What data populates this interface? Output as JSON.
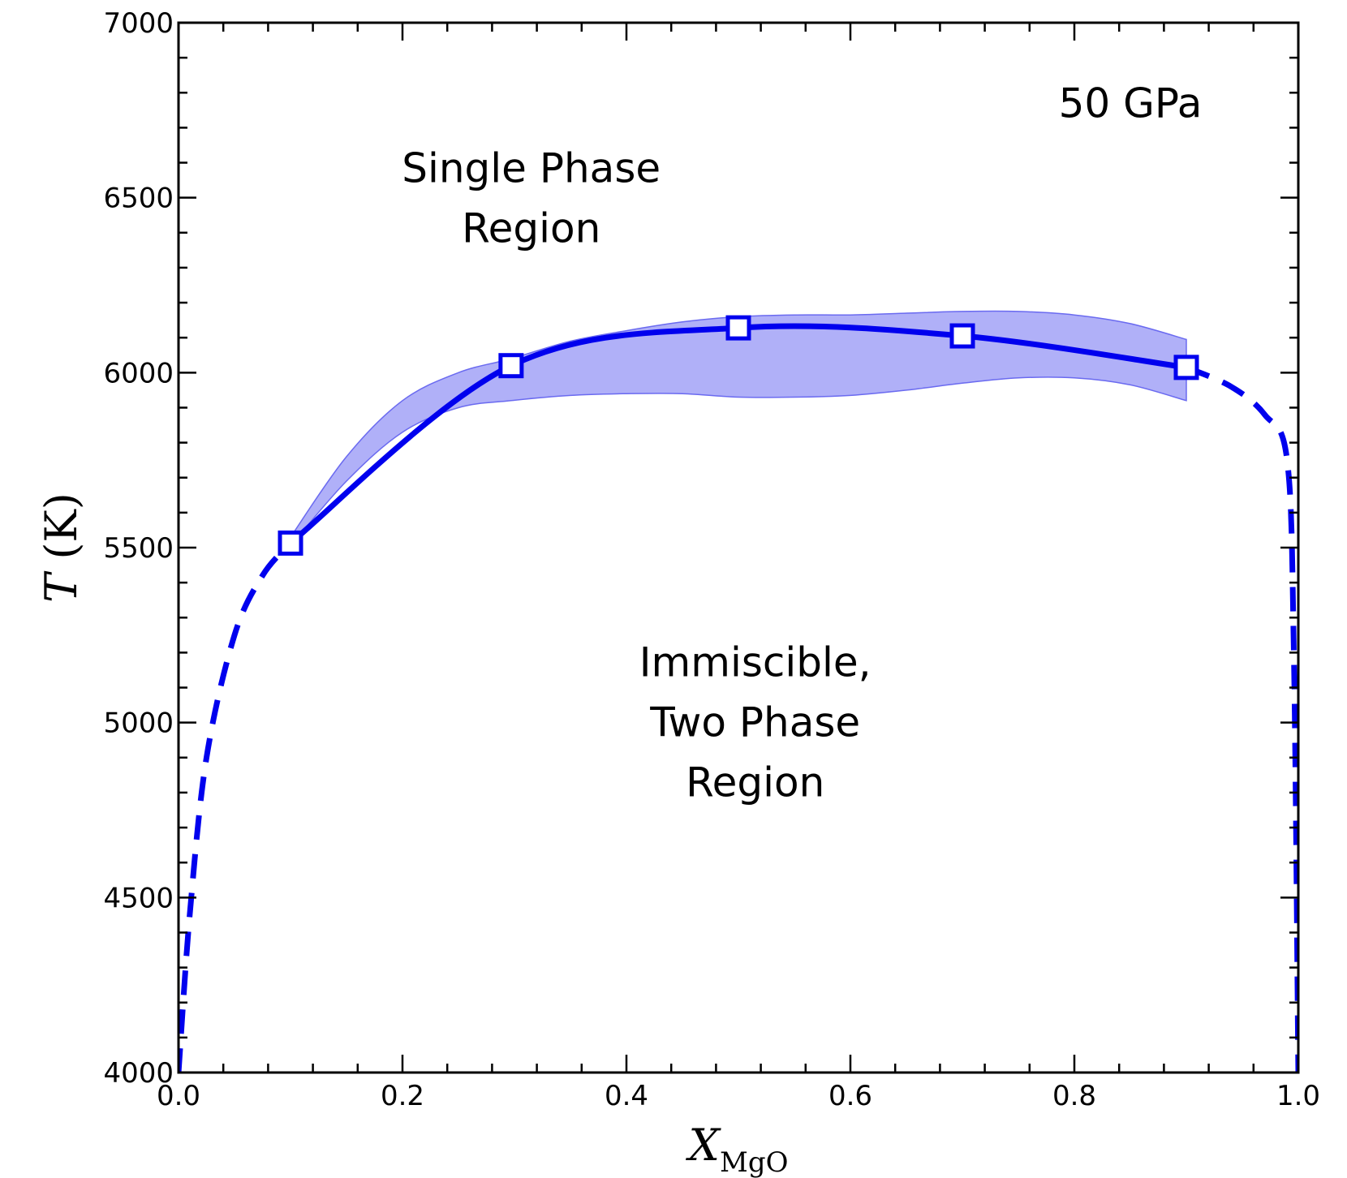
{
  "chart_data": {
    "type": "line",
    "x_axis": {
      "label_main": "X",
      "label_subscript": "MgO",
      "range": [
        0.0,
        1.0
      ],
      "ticks": [
        "0.0",
        "0.2",
        "0.4",
        "0.6",
        "0.8",
        "1.0"
      ],
      "tick_values": [
        0.0,
        0.2,
        0.4,
        0.6,
        0.8,
        1.0
      ]
    },
    "y_axis": {
      "label_main": "T",
      "label_unit": "(K)",
      "range": [
        4000,
        7000
      ],
      "ticks": [
        "4000",
        "4500",
        "5000",
        "5500",
        "6000",
        "6500",
        "7000"
      ],
      "tick_values": [
        4000,
        4500,
        5000,
        5500,
        6000,
        6500,
        7000
      ]
    },
    "colors": {
      "line": "#0000ee",
      "band": "#8f8ff5",
      "marker_fill": "#ffffff"
    },
    "series": [
      {
        "style": "solid",
        "markers": "open-square",
        "x": [
          0.1,
          0.297,
          0.5,
          0.7,
          0.9
        ],
        "y": [
          5513,
          6020,
          6128,
          6105,
          6015
        ]
      },
      {
        "style": "dashed",
        "x": [
          0.0,
          0.01,
          0.025,
          0.05,
          0.075,
          0.1
        ],
        "y": [
          4000,
          4450,
          4900,
          5250,
          5420,
          5513
        ]
      },
      {
        "style": "dashed",
        "x": [
          0.9,
          0.94,
          0.97,
          0.99,
          0.996,
          1.0
        ],
        "y": [
          6015,
          5960,
          5880,
          5750,
          5200,
          4000
        ]
      }
    ],
    "uncertainty_band": {
      "x": [
        0.1,
        0.15,
        0.2,
        0.25,
        0.297,
        0.35,
        0.4,
        0.45,
        0.5,
        0.55,
        0.6,
        0.65,
        0.7,
        0.75,
        0.8,
        0.85,
        0.9
      ],
      "upper": [
        5530,
        5760,
        5920,
        6000,
        6040,
        6090,
        6120,
        6145,
        6160,
        6165,
        6165,
        6170,
        6175,
        6175,
        6165,
        6140,
        6095
      ],
      "lower": [
        5505,
        5690,
        5830,
        5900,
        5920,
        5935,
        5940,
        5940,
        5930,
        5930,
        5935,
        5950,
        5970,
        5985,
        5985,
        5965,
        5920
      ]
    },
    "annotations": [
      {
        "id": "pressure",
        "lines": [
          "50 GPa"
        ],
        "x": 0.85,
        "y": 6730
      },
      {
        "id": "single",
        "lines": [
          "Single Phase",
          "Region"
        ],
        "x": 0.315,
        "y": 6545
      },
      {
        "id": "two-phase",
        "lines": [
          "Immiscible,",
          "Two Phase",
          "Region"
        ],
        "x": 0.515,
        "y": 5132
      }
    ]
  }
}
